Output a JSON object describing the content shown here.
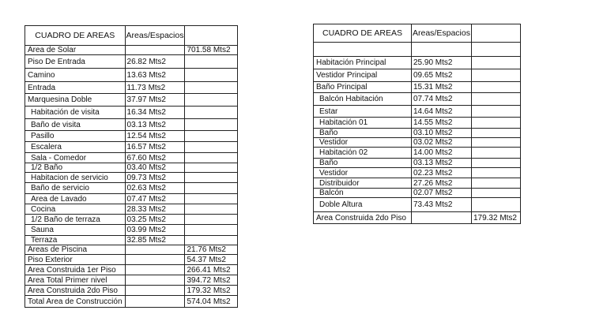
{
  "left_table": {
    "header": [
      "CUADRO DE AREAS",
      "Areas/Espacios",
      ""
    ],
    "rows": [
      {
        "name": "Area de Solar",
        "area": "",
        "total": "701.58 Mts2"
      },
      {
        "name": "Piso De Entrada",
        "area": "26.82 Mts2",
        "total": ""
      },
      {
        "name": "Camino",
        "area": "13.63 Mts2",
        "total": ""
      },
      {
        "name": "Entrada",
        "area": "11.73 Mts2",
        "total": ""
      },
      {
        "name": "Marquesina Doble",
        "area": "37.97 Mts2",
        "total": ""
      },
      {
        "name": "Habitación de visita",
        "area": "16.34 Mts2",
        "total": ""
      },
      {
        "name": "Baño de visita",
        "area": "03.13 Mts2",
        "total": ""
      },
      {
        "name": "Pasillo",
        "area": "12.54 Mts2",
        "total": ""
      },
      {
        "name": "Escalera",
        "area": "16.57 Mts2",
        "total": ""
      },
      {
        "name": "Sala - Comedor",
        "area": "67.60 Mts2",
        "total": ""
      },
      {
        "name": "1/2  Baño",
        "area": "03.40 Mts2",
        "total": ""
      },
      {
        "name": "Habitacion de servicio",
        "area": "09.73 Mts2",
        "total": ""
      },
      {
        "name": "Baño de servicio",
        "area": "02.63 Mts2",
        "total": ""
      },
      {
        "name": "Area de Lavado",
        "area": "07.47 Mts2",
        "total": ""
      },
      {
        "name": "Cocina",
        "area": "28.33 Mts2",
        "total": ""
      },
      {
        "name": "1/2 Baño de terraza",
        "area": "03.25 Mts2",
        "total": ""
      },
      {
        "name": "Sauna",
        "area": "03.99 Mts2",
        "total": ""
      },
      {
        "name": "Terraza",
        "area": "32.85 Mts2",
        "total": ""
      },
      {
        "name": "Areas de Piscina",
        "area": "",
        "total": "21.76 Mts2"
      },
      {
        "name": "Piso Exterior",
        "area": "",
        "total": "54.37 Mts2"
      },
      {
        "name": "Area Construida 1er Piso",
        "area": "",
        "total": "266.41 Mts2"
      },
      {
        "name": "Area Total Primer nivel",
        "area": "",
        "total": "394.72 Mts2"
      },
      {
        "name": "Area Construida 2do Piso",
        "area": "",
        "total": "179.32 Mts2"
      },
      {
        "name": "Total Area de Construcción",
        "area": "",
        "total": "574.04 Mts2"
      }
    ]
  },
  "right_table": {
    "header": [
      "CUADRO DE AREAS",
      "Areas/Espacios",
      ""
    ],
    "rows": [
      {
        "name": "",
        "area": "",
        "total": ""
      },
      {
        "name": "Habitación Principal",
        "area": "25.90 Mts2",
        "total": ""
      },
      {
        "name": "Vestidor Principal",
        "area": "09.65 Mts2",
        "total": ""
      },
      {
        "name": "Baño Principal",
        "area": "15.31 Mts2",
        "total": ""
      },
      {
        "name": "Balcón Habitación",
        "area": "07.74 Mts2",
        "total": ""
      },
      {
        "name": "Estar",
        "area": "14.64 Mts2",
        "total": ""
      },
      {
        "name": "Habitación 01",
        "area": "14.55 Mts2",
        "total": ""
      },
      {
        "name": "Baño",
        "area": "03.10 Mts2",
        "total": ""
      },
      {
        "name": "Vestidor",
        "area": "03.02 Mts2",
        "total": ""
      },
      {
        "name": "Habitación 02",
        "area": "14.00 Mts2",
        "total": ""
      },
      {
        "name": "Baño",
        "area": "03.13 Mts2",
        "total": ""
      },
      {
        "name": "Vestidor",
        "area": "02.23 Mts2",
        "total": ""
      },
      {
        "name": "Distribuidor",
        "area": "27.26 Mts2",
        "total": ""
      },
      {
        "name": "Balcón",
        "area": "02.07 Mts2",
        "total": ""
      },
      {
        "name": "Doble Altura",
        "area": "73.43 Mts2",
        "total": ""
      },
      {
        "name": "Area Construida 2do Piso",
        "area": "",
        "total": "179.32 Mts2"
      }
    ]
  }
}
